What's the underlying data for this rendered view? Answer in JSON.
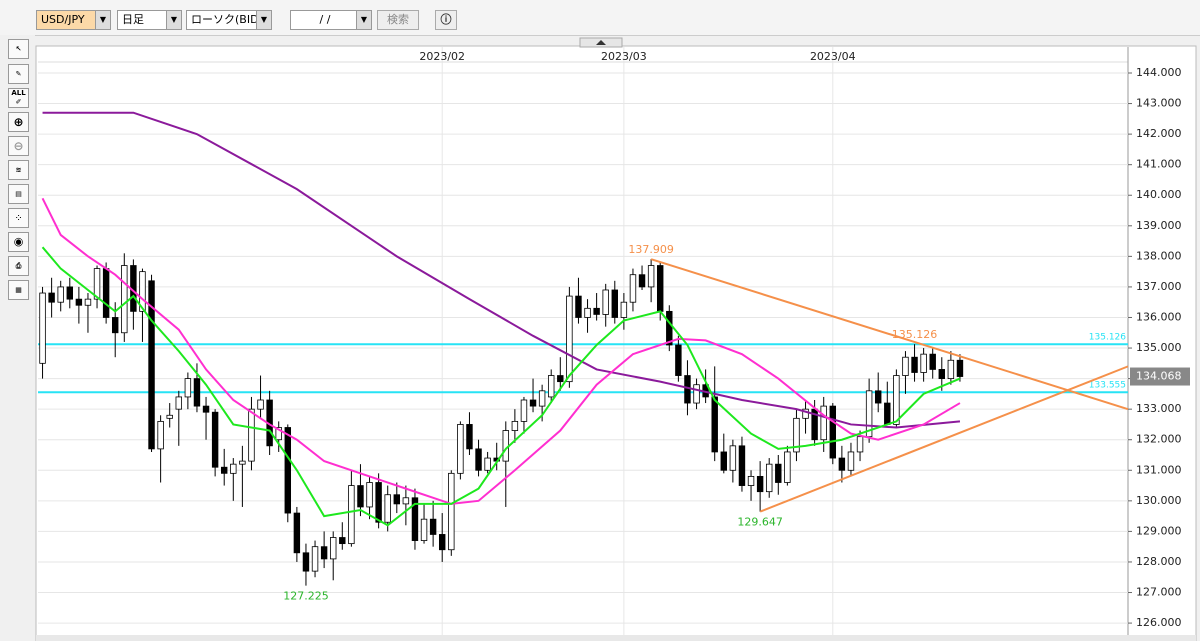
{
  "toolbar": {
    "pair": "USD/JPY",
    "period": "日足",
    "chart_kind": "ローソク(BID)",
    "date": "/ /",
    "search": "検索",
    "all_icon": "ALL"
  },
  "chart_data": {
    "type": "candlestick",
    "ohlc": [
      [
        134.5,
        137.0,
        134.0,
        136.8
      ],
      [
        136.8,
        137.3,
        136.0,
        136.5
      ],
      [
        136.5,
        137.2,
        136.2,
        137.0
      ],
      [
        137.0,
        137.3,
        136.3,
        136.6
      ],
      [
        136.6,
        137.0,
        135.8,
        136.4
      ],
      [
        136.4,
        136.8,
        135.5,
        136.6
      ],
      [
        136.6,
        137.7,
        136.3,
        137.6
      ],
      [
        137.6,
        137.8,
        135.8,
        136.0
      ],
      [
        136.0,
        136.5,
        134.7,
        135.5
      ],
      [
        135.5,
        138.1,
        135.2,
        137.7
      ],
      [
        137.7,
        137.9,
        135.6,
        136.2
      ],
      [
        136.2,
        137.6,
        135.2,
        137.5
      ],
      [
        137.2,
        137.4,
        131.6,
        131.7
      ],
      [
        131.7,
        132.8,
        130.6,
        132.6
      ],
      [
        132.7,
        133.2,
        132.4,
        132.8
      ],
      [
        133.0,
        133.6,
        131.8,
        133.4
      ],
      [
        133.4,
        134.2,
        133.0,
        134.0
      ],
      [
        134.0,
        134.5,
        132.9,
        133.1
      ],
      [
        133.1,
        133.4,
        132.0,
        132.9
      ],
      [
        132.9,
        133.0,
        130.8,
        131.1
      ],
      [
        131.1,
        131.7,
        130.5,
        130.9
      ],
      [
        130.9,
        131.4,
        130.0,
        131.2
      ],
      [
        131.2,
        131.8,
        129.8,
        131.3
      ],
      [
        131.3,
        133.4,
        131.0,
        133.0
      ],
      [
        133.0,
        134.1,
        132.7,
        133.3
      ],
      [
        133.3,
        133.6,
        131.5,
        131.8
      ],
      [
        132.0,
        132.6,
        131.6,
        132.4
      ],
      [
        132.4,
        132.5,
        129.3,
        129.6
      ],
      [
        129.6,
        129.8,
        128.0,
        128.3
      ],
      [
        128.3,
        128.6,
        127.225,
        127.7
      ],
      [
        127.7,
        128.7,
        127.5,
        128.5
      ],
      [
        128.5,
        129.0,
        127.8,
        128.1
      ],
      [
        128.1,
        129.0,
        127.4,
        128.8
      ],
      [
        128.8,
        129.3,
        128.4,
        128.6
      ],
      [
        128.6,
        131.0,
        128.5,
        130.5
      ],
      [
        130.5,
        131.2,
        129.5,
        129.8
      ],
      [
        129.8,
        130.8,
        129.4,
        130.6
      ],
      [
        130.6,
        130.9,
        129.1,
        129.3
      ],
      [
        129.3,
        130.5,
        129.0,
        130.2
      ],
      [
        130.2,
        130.6,
        129.6,
        129.9
      ],
      [
        129.9,
        130.5,
        129.2,
        130.1
      ],
      [
        130.1,
        130.4,
        128.4,
        128.7
      ],
      [
        128.7,
        129.9,
        128.6,
        129.4
      ],
      [
        129.4,
        130.0,
        128.5,
        128.9
      ],
      [
        128.9,
        129.6,
        128.0,
        128.4
      ],
      [
        128.4,
        131.0,
        128.2,
        130.9
      ],
      [
        130.9,
        132.6,
        130.7,
        132.5
      ],
      [
        132.5,
        132.9,
        131.5,
        131.7
      ],
      [
        131.7,
        132.0,
        130.8,
        131.0
      ],
      [
        131.0,
        131.6,
        130.9,
        131.4
      ],
      [
        131.4,
        131.9,
        131.0,
        131.3
      ],
      [
        131.3,
        132.6,
        129.8,
        132.3
      ],
      [
        132.3,
        133.0,
        131.9,
        132.6
      ],
      [
        132.6,
        133.4,
        132.2,
        133.3
      ],
      [
        133.3,
        134.0,
        132.9,
        133.1
      ],
      [
        133.1,
        133.8,
        132.6,
        133.6
      ],
      [
        133.4,
        134.3,
        133.2,
        134.1
      ],
      [
        134.1,
        134.7,
        133.6,
        133.9
      ],
      [
        133.9,
        137.0,
        133.7,
        136.7
      ],
      [
        136.7,
        137.3,
        135.8,
        136.0
      ],
      [
        136.0,
        136.6,
        135.5,
        136.3
      ],
      [
        136.3,
        136.8,
        135.9,
        136.1
      ],
      [
        136.1,
        137.1,
        135.7,
        136.9
      ],
      [
        136.9,
        137.2,
        135.8,
        136.0
      ],
      [
        136.0,
        136.8,
        135.6,
        136.5
      ],
      [
        136.5,
        137.6,
        136.2,
        137.4
      ],
      [
        137.4,
        137.7,
        136.9,
        137.0
      ],
      [
        137.0,
        137.909,
        136.5,
        137.7
      ],
      [
        137.7,
        137.8,
        135.9,
        136.2
      ],
      [
        136.2,
        136.4,
        134.9,
        135.1
      ],
      [
        135.1,
        135.4,
        133.9,
        134.1
      ],
      [
        134.1,
        134.6,
        132.8,
        133.2
      ],
      [
        133.2,
        134.0,
        133.0,
        133.8
      ],
      [
        133.8,
        134.3,
        133.2,
        133.4
      ],
      [
        133.4,
        134.4,
        131.3,
        131.6
      ],
      [
        131.6,
        132.2,
        130.9,
        131.0
      ],
      [
        131.0,
        132.0,
        130.6,
        131.8
      ],
      [
        131.8,
        132.1,
        130.3,
        130.5
      ],
      [
        130.5,
        131.0,
        130.0,
        130.8
      ],
      [
        130.8,
        131.3,
        129.647,
        130.3
      ],
      [
        130.3,
        131.4,
        130.1,
        131.2
      ],
      [
        131.2,
        131.5,
        130.2,
        130.6
      ],
      [
        130.6,
        131.8,
        130.5,
        131.6
      ],
      [
        131.6,
        133.0,
        131.3,
        132.7
      ],
      [
        132.7,
        133.3,
        132.2,
        133.0
      ],
      [
        133.0,
        133.3,
        131.8,
        132.0
      ],
      [
        132.0,
        133.4,
        131.6,
        133.1
      ],
      [
        133.1,
        133.2,
        131.2,
        131.4
      ],
      [
        131.4,
        131.8,
        130.6,
        131.0
      ],
      [
        131.0,
        131.9,
        130.8,
        131.6
      ],
      [
        131.6,
        132.3,
        131.3,
        132.1
      ],
      [
        132.1,
        134.0,
        131.9,
        133.6
      ],
      [
        133.6,
        134.2,
        132.9,
        133.2
      ],
      [
        133.2,
        133.9,
        132.5,
        132.5
      ],
      [
        132.5,
        134.3,
        132.4,
        134.1
      ],
      [
        134.1,
        134.9,
        133.5,
        134.7
      ],
      [
        134.7,
        135.126,
        133.9,
        134.2
      ],
      [
        134.2,
        135.0,
        133.9,
        134.8
      ],
      [
        134.8,
        135.0,
        134.0,
        134.3
      ],
      [
        134.3,
        134.7,
        133.6,
        134.0
      ],
      [
        134.0,
        134.9,
        133.8,
        134.6
      ],
      [
        134.6,
        134.8,
        133.9,
        134.068
      ]
    ],
    "series": [
      {
        "color": "#8b1a9b",
        "x": [
          0,
          10,
          17,
          28,
          39,
          47,
          54,
          61,
          68,
          77,
          83,
          89,
          94,
          101
        ],
        "values": [
          142.7,
          142.7,
          142.0,
          140.2,
          138.0,
          136.6,
          135.4,
          134.3,
          133.9,
          133.3,
          133.0,
          132.5,
          132.4,
          132.6
        ]
      },
      {
        "color": "#ff2fd0",
        "x": [
          0,
          2,
          5,
          8,
          11,
          15,
          18,
          21,
          25,
          28,
          31,
          36,
          40,
          45,
          48,
          52,
          57,
          61,
          65,
          70,
          73,
          77,
          81,
          86,
          89,
          92,
          97,
          101
        ],
        "values": [
          139.9,
          138.7,
          138.0,
          137.4,
          136.6,
          135.6,
          134.3,
          133.3,
          132.5,
          132.0,
          131.3,
          130.8,
          130.4,
          129.9,
          130.0,
          131.0,
          132.3,
          133.8,
          134.8,
          135.3,
          135.25,
          134.8,
          134.0,
          132.8,
          132.2,
          132.0,
          132.5,
          133.2
        ]
      },
      {
        "color": "#1ee81e",
        "x": [
          0,
          2,
          5,
          8,
          10,
          12,
          15,
          18,
          21,
          25,
          28,
          31,
          35,
          38,
          41,
          45,
          48,
          51,
          55,
          58,
          61,
          64,
          68,
          71,
          74,
          78,
          81,
          84,
          88,
          91,
          94,
          97,
          101
        ],
        "values": [
          138.3,
          137.6,
          136.9,
          136.2,
          136.7,
          135.9,
          134.9,
          133.8,
          132.5,
          132.3,
          131.0,
          129.5,
          129.7,
          129.2,
          129.9,
          129.9,
          130.4,
          131.7,
          132.8,
          134.1,
          135.1,
          135.9,
          136.2,
          135.1,
          133.3,
          132.2,
          131.7,
          131.8,
          132.0,
          132.3,
          132.6,
          133.5,
          134.0
        ]
      }
    ],
    "trendlines": [
      {
        "color": "#f5904a",
        "x": [
          67,
          119.5
        ],
        "values": [
          137.909,
          133.0
        ]
      },
      {
        "color": "#f5904a",
        "x": [
          79,
          119.5
        ],
        "values": [
          129.647,
          134.4
        ]
      }
    ],
    "hlines": [
      {
        "value": 135.126,
        "color": "#27e3f5"
      },
      {
        "value": 133.555,
        "color": "#27e3f5"
      }
    ],
    "annotations": [
      {
        "x": 67,
        "value": 137.909,
        "color": "#f5904a",
        "pos": "above"
      },
      {
        "x": 96,
        "value": 135.126,
        "color": "#f5904a",
        "pos": "above"
      },
      {
        "x": 79,
        "value": 129.647,
        "color": "#2bb52b",
        "pos": "below"
      },
      {
        "x": 29,
        "value": 127.225,
        "color": "#2bb52b",
        "pos": "below"
      }
    ],
    "last_price": 134.068,
    "xlim": [
      -0.5,
      119.5
    ],
    "xticks": [
      {
        "value": 44,
        "label": "2023/02"
      },
      {
        "value": 64,
        "label": "2023/03"
      },
      {
        "value": 87,
        "label": "2023/04"
      }
    ],
    "ylim": [
      125.61,
      144.36
    ],
    "yticks": [
      {
        "value": 126,
        "label": "126.000"
      },
      {
        "value": 127,
        "label": "127.000"
      },
      {
        "value": 128,
        "label": "128.000"
      },
      {
        "value": 129,
        "label": "129.000"
      },
      {
        "value": 130,
        "label": "130.000"
      },
      {
        "value": 131,
        "label": "131.000"
      },
      {
        "value": 132,
        "label": "132.000"
      },
      {
        "value": 133,
        "label": "133.000"
      },
      {
        "value": 134,
        "label": "134.000"
      },
      {
        "value": 135,
        "label": "135.000"
      },
      {
        "value": 136,
        "label": "136.000"
      },
      {
        "value": 137,
        "label": "137.000"
      },
      {
        "value": 138,
        "label": "138.000"
      },
      {
        "value": 139,
        "label": "139.000"
      },
      {
        "value": 140,
        "label": "140.000"
      },
      {
        "value": 141,
        "label": "141.000"
      },
      {
        "value": 142,
        "label": "142.000"
      },
      {
        "value": 143,
        "label": "143.000"
      },
      {
        "value": 144,
        "label": "144.000"
      }
    ],
    "grid": true
  }
}
